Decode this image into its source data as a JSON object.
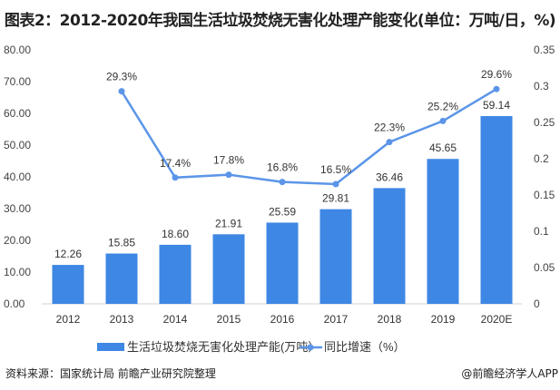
{
  "title": "图表2：2012-2020年我国生活垃圾焚烧无害化处理产能变化(单位：万吨/日，%)",
  "source": "资料来源：国家统计局 前瞻产业研究院整理",
  "brand": "@前瞻经济学人APP",
  "chart_data": {
    "type": "bar+line",
    "categories": [
      "2012",
      "2013",
      "2014",
      "2015",
      "2016",
      "2017",
      "2018",
      "2019",
      "2020E"
    ],
    "series": [
      {
        "name": "生活垃圾焚烧无害化处理产能(万吨）",
        "type": "bar",
        "axis": "left",
        "color": "#3e87e4",
        "values": [
          12.26,
          15.85,
          18.6,
          21.91,
          25.59,
          29.81,
          36.46,
          45.65,
          59.14
        ],
        "labels": [
          "12.26",
          "15.85",
          "18.60",
          "21.91",
          "25.59",
          "29.81",
          "36.46",
          "45.65",
          "59.14"
        ]
      },
      {
        "name": "同比增速（%）",
        "type": "line",
        "axis": "right",
        "color": "#5b95e8",
        "values": [
          null,
          0.293,
          0.174,
          0.178,
          0.168,
          0.165,
          0.223,
          0.252,
          0.296
        ],
        "labels": [
          "",
          "29.3%",
          "17.4%",
          "17.8%",
          "16.8%",
          "16.5%",
          "22.3%",
          "25.2%",
          "29.6%"
        ]
      }
    ],
    "y_left": {
      "range": [
        0,
        80
      ],
      "ticks": [
        "0.00",
        "10.00",
        "20.00",
        "30.00",
        "40.00",
        "50.00",
        "60.00",
        "70.00",
        "80.00"
      ]
    },
    "y_right": {
      "range": [
        0,
        0.35
      ],
      "ticks": [
        "0",
        "0.05",
        "0.1",
        "0.15",
        "0.2",
        "0.25",
        "0.3",
        "0.35"
      ]
    },
    "grid": false,
    "legend": "bottom"
  }
}
